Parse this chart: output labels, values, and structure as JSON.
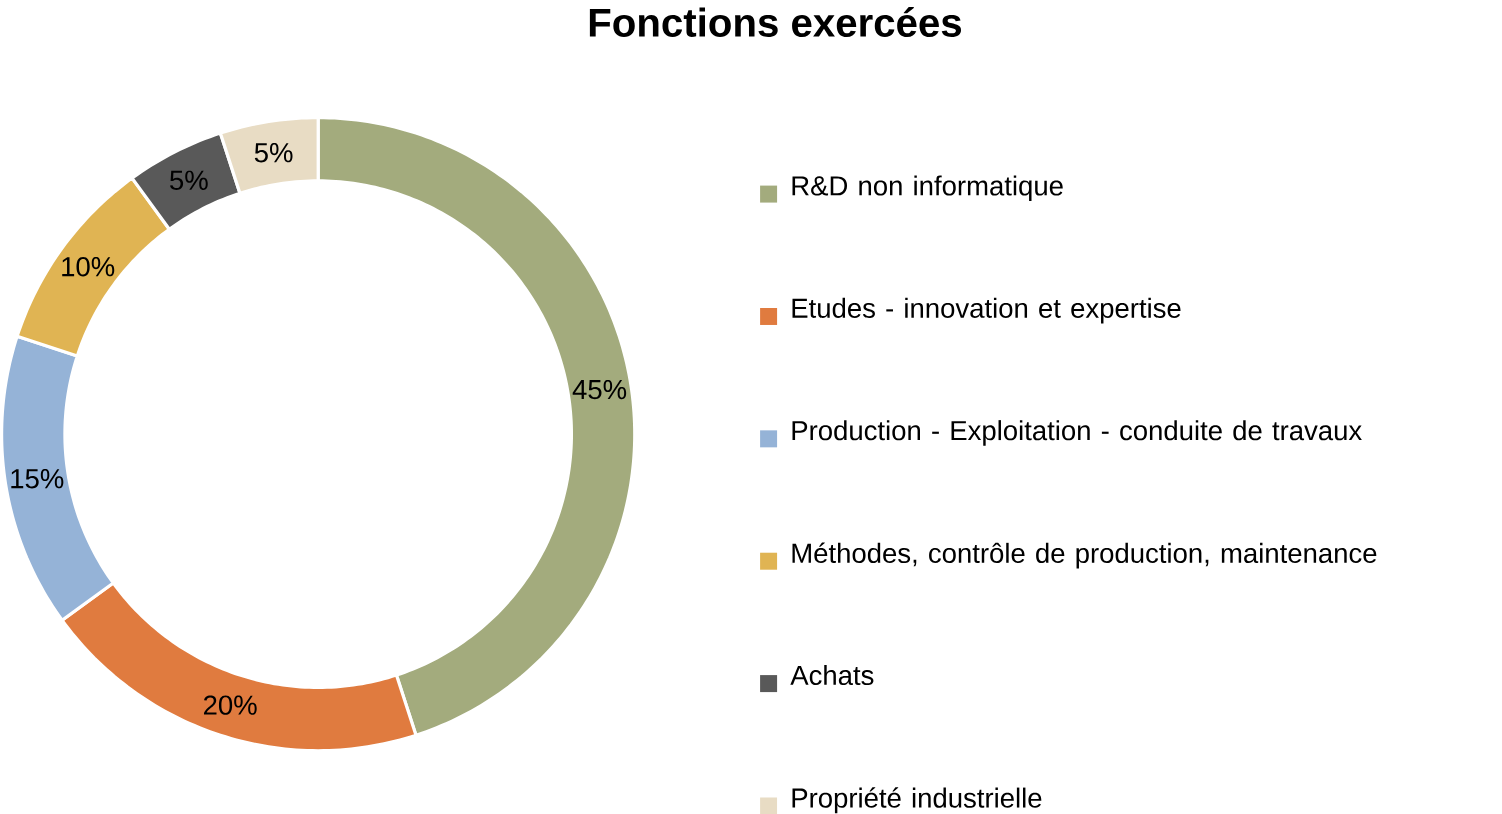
{
  "chart_data": {
    "type": "donut",
    "title": "Fonctions exercées",
    "categories": [
      "R&D non informatique",
      "Etudes - innovation et expertise",
      "Production - Exploitation - conduite de travaux",
      "Méthodes, contrôle de production, maintenance",
      "Achats",
      "Propriété industrielle"
    ],
    "values": [
      45,
      20,
      15,
      10,
      5,
      5
    ],
    "value_labels": [
      "45%",
      "20%",
      "15%",
      "10%",
      "5%",
      "5%"
    ],
    "colors": [
      "#a3ab7d",
      "#e07b3f",
      "#95b3d7",
      "#e0b453",
      "#595959",
      "#e8dcc4"
    ],
    "legend": "right"
  }
}
